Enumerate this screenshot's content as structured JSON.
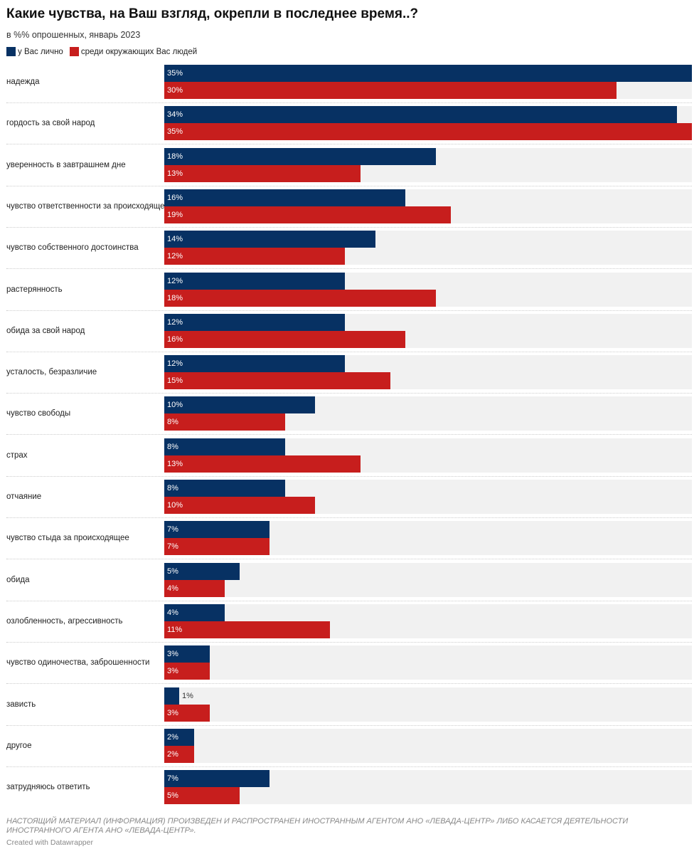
{
  "header": {
    "title": "Какие чувства, на Ваш взгляд, окрепли в последнее время..?",
    "subtitle": "в %% опрошенных, январь 2023"
  },
  "legend": [
    {
      "label": "у Вас лично",
      "color": "#073163"
    },
    {
      "label": "среди окружающих Вас людей",
      "color": "#c71e1d"
    }
  ],
  "chart_data": {
    "type": "bar",
    "orientation": "horizontal",
    "title": "Какие чувства, на Ваш взгляд, окрепли в последнее время..?",
    "subtitle": "в %% опрошенных, январь 2023",
    "xlim": [
      0,
      35
    ],
    "grid": false,
    "legend_position": "top-left",
    "categories": [
      "надежда",
      "гордость за свой народ",
      "уверенность в завтрашнем дне",
      "чувство ответственности за происходящее",
      "чувство собственного достоинства",
      "растерянность",
      "обида за свой народ",
      "усталость, безразличие",
      "чувство свободы",
      "страх",
      "отчаяние",
      "чувство стыда за происходящее",
      "обида",
      "озлобленность, агрессивность",
      "чувство одиночества, заброшенности",
      "зависть",
      "другое",
      "затрудняюсь ответить"
    ],
    "series": [
      {
        "name": "у Вас лично",
        "color": "#073163",
        "values": [
          35,
          34,
          18,
          16,
          14,
          12,
          12,
          12,
          10,
          8,
          8,
          7,
          5,
          4,
          3,
          1,
          2,
          7
        ]
      },
      {
        "name": "среди окружающих Вас людей",
        "color": "#c71e1d",
        "values": [
          30,
          35,
          13,
          19,
          12,
          18,
          16,
          15,
          8,
          13,
          10,
          7,
          4,
          11,
          3,
          3,
          2,
          5
        ]
      }
    ]
  },
  "footer": {
    "notes": "НАСТОЯЩИЙ МАТЕРИАЛ (ИНФОРМАЦИЯ) ПРОИЗВЕДЕН И РАСПРОСТРАНЕН ИНОСТРАННЫМ АГЕНТОМ АНО «ЛЕВАДА-ЦЕНТР» ЛИБО КАСАЕТСЯ ДЕЯТЕЛЬНОСТИ ИНОСТРАННОГО АГЕНТА АНО «ЛЕВАДА-ЦЕНТР».",
    "credit": "Created with Datawrapper"
  }
}
